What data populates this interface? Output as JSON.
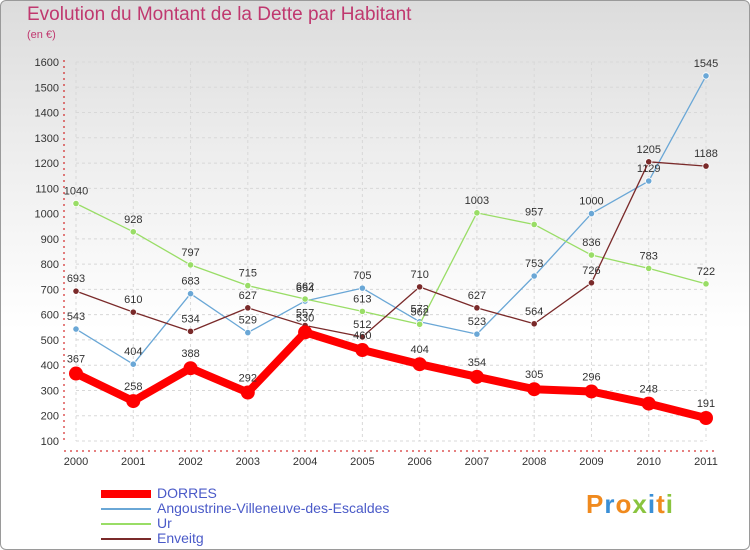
{
  "chart_data": {
    "type": "line",
    "title": "Evolution du Montant de la Dette par Habitant",
    "ylabel": "(en €)",
    "xlabel": "",
    "ylim": [
      100,
      1600
    ],
    "yticks": [
      100,
      200,
      300,
      400,
      500,
      600,
      700,
      800,
      900,
      1000,
      1100,
      1200,
      1300,
      1400,
      1500,
      1600
    ],
    "categories": [
      "2000",
      "2001",
      "2002",
      "2003",
      "2004",
      "2005",
      "2006",
      "2007",
      "2008",
      "2009",
      "2010",
      "2011"
    ],
    "grid": true,
    "legend_position": "bottom-left",
    "series": [
      {
        "name": "DORRES",
        "color": "#ff0000",
        "values": [
          367,
          258,
          388,
          292,
          530,
          460,
          404,
          354,
          305,
          296,
          248,
          191
        ]
      },
      {
        "name": "Angoustrine-Villeneuve-des-Escaldes",
        "color": "#6aa7d6",
        "values": [
          543,
          404,
          683,
          529,
          654,
          705,
          572,
          523,
          753,
          1000,
          1129,
          1545
        ]
      },
      {
        "name": "Ur",
        "color": "#99dd66",
        "values": [
          1040,
          928,
          797,
          715,
          662,
          613,
          562,
          1003,
          957,
          836,
          783,
          722
        ]
      },
      {
        "name": "Enveitg",
        "color": "#7a2a2a",
        "values": [
          693,
          610,
          534,
          627,
          557,
          512,
          710,
          627,
          564,
          726,
          1205,
          1188
        ]
      }
    ]
  },
  "brand": {
    "letters": [
      "P",
      "r",
      "o",
      "x",
      "i",
      "t",
      "i"
    ]
  }
}
